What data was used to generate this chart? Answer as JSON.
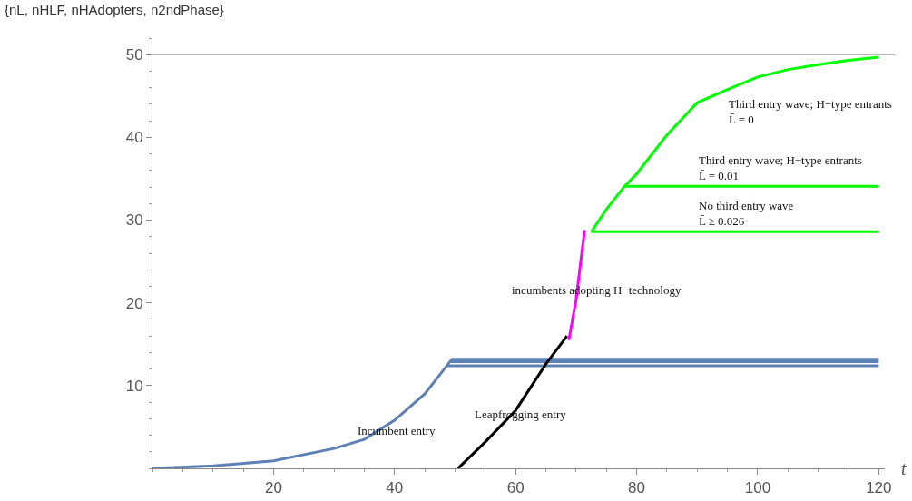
{
  "chart_data": {
    "type": "line",
    "title": "{nL, nHLF, nHAdopters, n2ndPhase}",
    "xlabel": "t",
    "xlim": [
      0,
      121
    ],
    "xticks": [
      20,
      40,
      60,
      80,
      100,
      120
    ],
    "ylim": [
      0,
      52
    ],
    "yticks": [
      10,
      20,
      30,
      40,
      50
    ],
    "grid": false,
    "marker": "none",
    "line_style": "solid",
    "series": [
      {
        "color": "#5e81b5",
        "x": [
          0,
          10,
          20,
          30,
          35,
          40,
          45,
          49.5,
          120
        ],
        "values": [
          0,
          0.3,
          0.9,
          2.4,
          3.5,
          5.8,
          9.0,
          13.2,
          13.2
        ]
      },
      {
        "color": "#5e81b5",
        "x": [
          49.2,
          120
        ],
        "values": [
          12.9,
          12.9
        ]
      },
      {
        "color": "#5e81b5",
        "x": [
          48.6,
          120
        ],
        "values": [
          12.4,
          12.4
        ]
      },
      {
        "color": "#000000",
        "x": [
          50.5,
          55,
          60,
          65,
          68.5
        ],
        "values": [
          0,
          3.2,
          7.0,
          12.6,
          16.0
        ]
      },
      {
        "color": "#ff00ff",
        "x": [
          68.8,
          70,
          71.4
        ],
        "values": [
          15.5,
          20.4,
          28.8
        ]
      },
      {
        "color": "#00ff00",
        "x": [
          72.5,
          75,
          78,
          80,
          85,
          90,
          95,
          100,
          105,
          110,
          115,
          120
        ],
        "values": [
          28.6,
          31.3,
          34.1,
          35.6,
          40.3,
          44.2,
          45.8,
          47.3,
          48.2,
          48.8,
          49.3,
          49.7
        ]
      },
      {
        "color": "#00ff00",
        "x": [
          78,
          120
        ],
        "values": [
          34.1,
          34.1
        ]
      },
      {
        "color": "#00ff00",
        "x": [
          72.5,
          120
        ],
        "values": [
          28.6,
          28.6
        ]
      }
    ],
    "ref_lines": [
      {
        "axis": "y",
        "value": 50,
        "color": "#bbbbbb"
      }
    ],
    "annotations": [
      "Third entry wave; H−type entrants\nL̄ = 0",
      "Third entry wave; H−type entrants\nL̄ = 0.01",
      "No third entry wave\nL̄ ≥ 0.026",
      "incumbents adopting H−technology",
      "Leapfrogging entry",
      "Incumbent entry"
    ]
  }
}
